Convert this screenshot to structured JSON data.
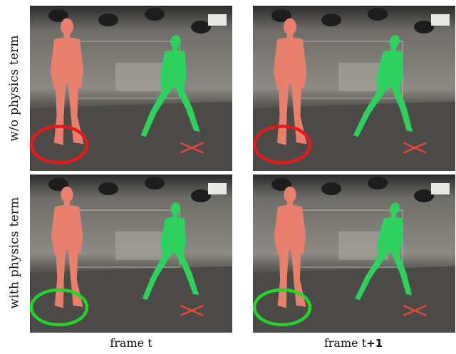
{
  "rows": [
    {
      "label": "w/o physics term",
      "circle_color": "#e11b1b"
    },
    {
      "label": "with physics term",
      "circle_color": "#27d32a"
    }
  ],
  "columns": [
    {
      "label_prefix": "frame t",
      "label_suffix": ""
    },
    {
      "label_prefix": "frame t",
      "label_suffix": "+1"
    }
  ],
  "colors": {
    "red_body": "#e8806d",
    "green_body": "#2fd15e",
    "floor_marker": "#e04a3a"
  }
}
